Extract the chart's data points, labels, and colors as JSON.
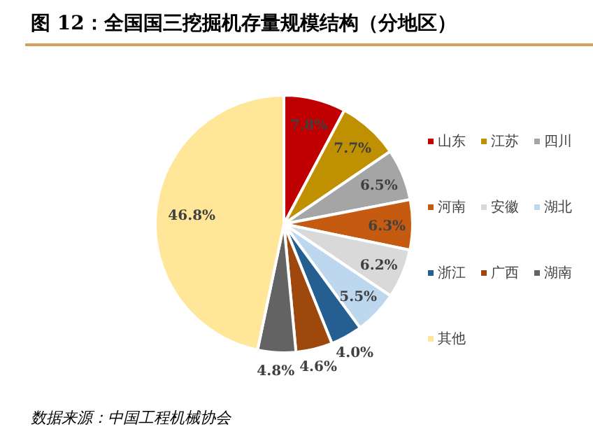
{
  "chart_data": {
    "type": "pie",
    "title": "图 12：全国国三挖掘机存量规模结构（分地区）",
    "categories": [
      "山东",
      "江苏",
      "四川",
      "河南",
      "安徽",
      "湖北",
      "浙江",
      "广西",
      "湖南",
      "其他"
    ],
    "values": [
      7.8,
      7.7,
      6.5,
      6.3,
      6.2,
      5.5,
      4.0,
      4.6,
      4.8,
      46.8
    ],
    "colors": [
      "#c00000",
      "#bf9000",
      "#a5a5a5",
      "#c55a11",
      "#d9d9d9",
      "#bdd7ee",
      "#255e91",
      "#9e480e",
      "#636363",
      "#ffe699"
    ],
    "value_labels": [
      "7.8%",
      "7.7%",
      "6.5%",
      "6.3%",
      "6.2%",
      "5.5%",
      "4.0%",
      "4.6%",
      "4.8%",
      "46.8%"
    ],
    "legend": "right",
    "annotations": [
      "数据来源：中国工程机械协会"
    ]
  }
}
